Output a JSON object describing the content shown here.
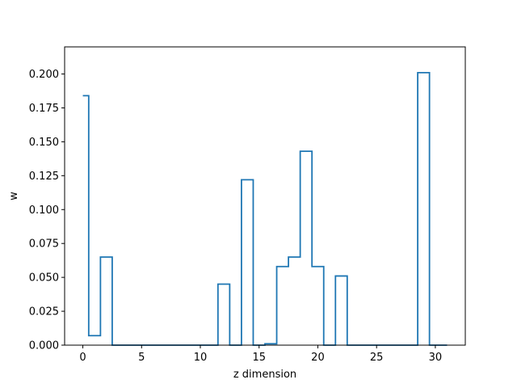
{
  "chart_data": {
    "type": "line",
    "drawstyle": "steps-mid",
    "title": "",
    "xlabel": "z dimension",
    "ylabel": "w",
    "xlim": [
      -1.55,
      32.55
    ],
    "ylim": [
      0.0,
      0.22
    ],
    "xticks": [
      0,
      5,
      10,
      15,
      20,
      25,
      30
    ],
    "xtick_labels": [
      "0",
      "5",
      "10",
      "15",
      "20",
      "25",
      "30"
    ],
    "yticks": [
      0.0,
      0.025,
      0.05,
      0.075,
      0.1,
      0.125,
      0.15,
      0.175,
      0.2
    ],
    "ytick_labels": [
      "0.000",
      "0.025",
      "0.050",
      "0.075",
      "0.100",
      "0.125",
      "0.150",
      "0.175",
      "0.200"
    ],
    "grid": false,
    "legend": "none",
    "series": [
      {
        "color": "#1f77b4",
        "x": [
          0,
          1,
          2,
          3,
          4,
          5,
          6,
          7,
          8,
          9,
          10,
          11,
          12,
          13,
          14,
          15,
          16,
          17,
          18,
          19,
          20,
          21,
          22,
          23,
          24,
          25,
          26,
          27,
          28,
          29,
          30,
          31
        ],
        "y": [
          0.184,
          0.007,
          0.065,
          0.0,
          0.0,
          0.0,
          0.0,
          0.0,
          0.0,
          0.0,
          0.0,
          0.0,
          0.045,
          0.0,
          0.122,
          0.0,
          0.001,
          0.058,
          0.065,
          0.143,
          0.058,
          0.0,
          0.051,
          0.0,
          0.0,
          0.0,
          0.0,
          0.0,
          0.0,
          0.201,
          0.0,
          0.0
        ]
      }
    ]
  }
}
